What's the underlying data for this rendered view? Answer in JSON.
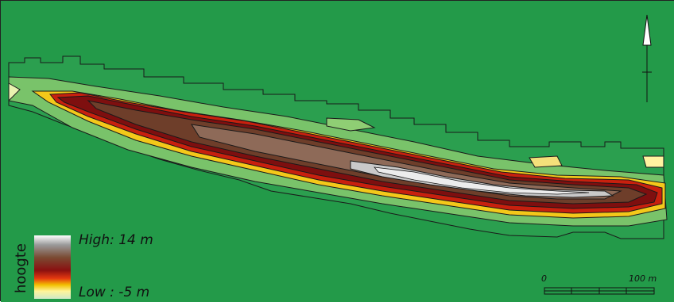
{
  "legend": {
    "title": "hoogte",
    "high_label": "High: 14 m",
    "low_label": "Low : -5 m",
    "ramp_colors": [
      "#ffffff",
      "#9a9a9a",
      "#7a4a32",
      "#8a1010",
      "#e53a10",
      "#f2c000",
      "#fff59a",
      "#8ecf8a",
      "#2e9d4a"
    ]
  },
  "scale_bar": {
    "start_label": "0",
    "end_label": "100 m"
  },
  "north_arrow": {
    "icon": "north-arrow-icon"
  },
  "colors": {
    "background": "#239a49",
    "contour": "#1a1a1a",
    "frame": "#222222"
  }
}
